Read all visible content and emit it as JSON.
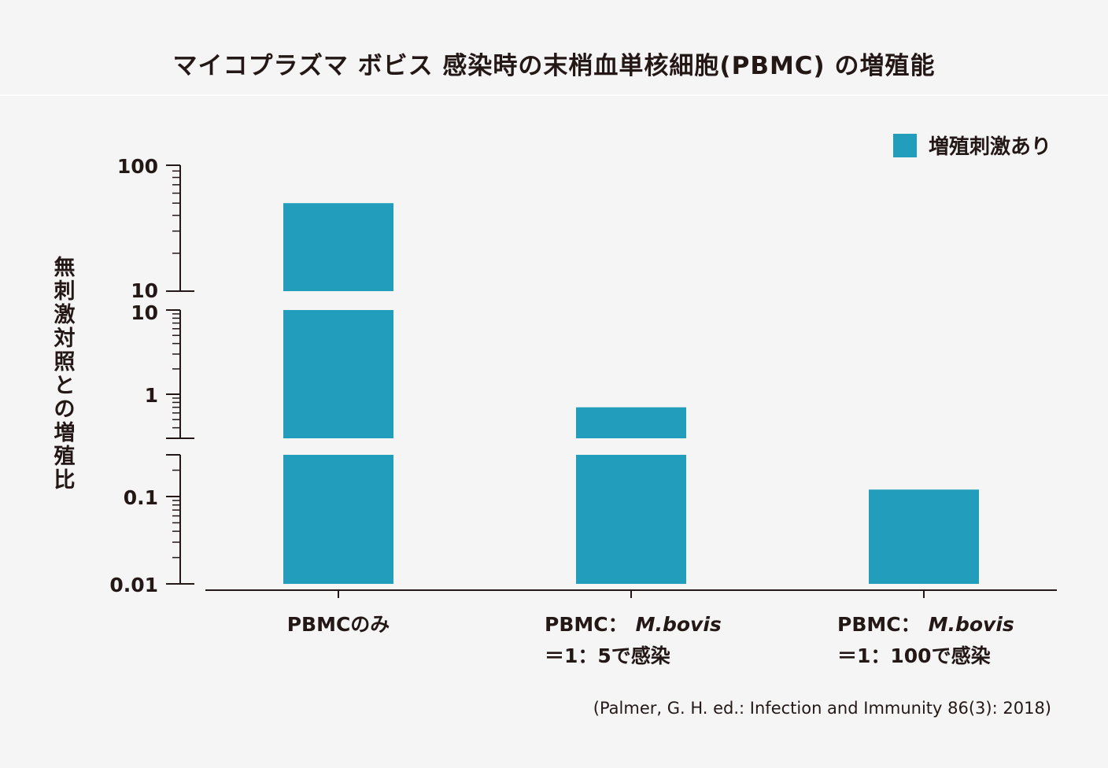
{
  "title": "マイコプラズマ ボビス 感染時の末梢血単核細胞(PBMC) の増殖能",
  "source": "(Palmer, G. H. ed.: Infection and Immunity 86(3): 2018)",
  "colors": {
    "bar": "#229dbc",
    "axis": "#231815",
    "background": "#f5f5f5"
  },
  "chart_data": {
    "type": "bar",
    "title": "マイコプラズマ ボビス 感染時の末梢血単核細胞(PBMC) の増殖能",
    "ylabel": "無刺激対照との増殖比",
    "xlabel": "",
    "yscale": "log (broken axis)",
    "ylim": [
      0.01,
      100
    ],
    "y_ticks": [
      "100",
      "10",
      "10",
      "1",
      "0.1",
      "0.01"
    ],
    "legend": {
      "position": "top-right",
      "entries": [
        "増殖刺激あり"
      ]
    },
    "categories": [
      {
        "line1": "PBMCのみ",
        "line2_prefix": "",
        "line2_italic": "",
        "line3": ""
      },
      {
        "line1": "PBMC：",
        "line2_italic": "M.bovis",
        "line3": "＝1：5で感染"
      },
      {
        "line1": "PBMC：",
        "line2_italic": "M.bovis",
        "line3": "＝1：100で感染"
      }
    ],
    "series": [
      {
        "name": "増殖刺激あり",
        "values": [
          50,
          0.7,
          0.12
        ]
      }
    ]
  }
}
